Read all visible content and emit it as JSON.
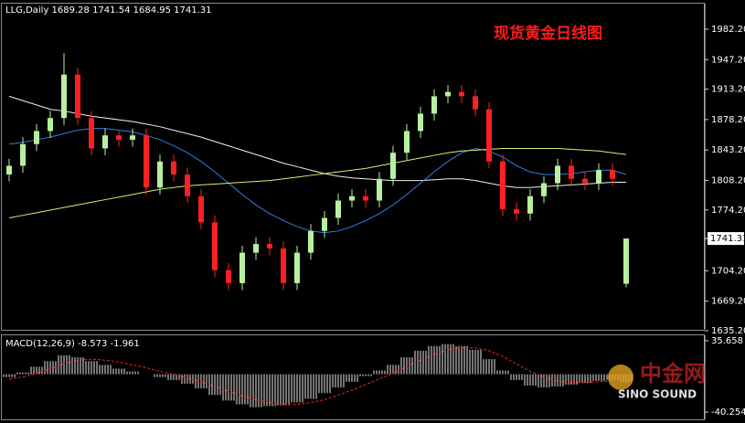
{
  "chart_data": [
    {
      "type": "candlestick",
      "title": "LLG,Daily  1689.28 1741.54 1684.95 1741.31",
      "annotation": "现货黄金日线图",
      "up_color": "#b8f0a0",
      "down_color": "#ff2020",
      "open": [
        1815,
        1825,
        1850,
        1865,
        1880,
        1930,
        1880,
        1845,
        1860,
        1855,
        1860,
        1800,
        1830,
        1815,
        1790,
        1760,
        1705,
        1690,
        1725,
        1735,
        1730,
        1690,
        1725,
        1750,
        1765,
        1785,
        1790,
        1785,
        1810,
        1840,
        1865,
        1885,
        1905,
        1910,
        1905,
        1890,
        1830,
        1775,
        1770,
        1790,
        1805,
        1825,
        1810,
        1805,
        1820,
        1689.28
      ],
      "high": [
        1833,
        1858,
        1873,
        1888,
        1955,
        1938,
        1888,
        1868,
        1865,
        1868,
        1868,
        1838,
        1838,
        1823,
        1798,
        1768,
        1713,
        1733,
        1743,
        1743,
        1738,
        1733,
        1758,
        1773,
        1793,
        1798,
        1798,
        1818,
        1848,
        1873,
        1893,
        1913,
        1918,
        1918,
        1913,
        1898,
        1838,
        1783,
        1798,
        1813,
        1833,
        1833,
        1818,
        1828,
        1828,
        1741.54
      ],
      "low": [
        1807,
        1817,
        1842,
        1857,
        1872,
        1872,
        1837,
        1837,
        1847,
        1847,
        1792,
        1792,
        1807,
        1782,
        1752,
        1697,
        1682,
        1682,
        1717,
        1722,
        1682,
        1682,
        1717,
        1742,
        1757,
        1777,
        1777,
        1777,
        1802,
        1832,
        1857,
        1877,
        1897,
        1897,
        1882,
        1822,
        1767,
        1762,
        1762,
        1782,
        1797,
        1802,
        1797,
        1797,
        1802,
        1684.95
      ],
      "close": [
        1825,
        1850,
        1865,
        1880,
        1930,
        1880,
        1845,
        1860,
        1855,
        1860,
        1800,
        1830,
        1815,
        1790,
        1760,
        1705,
        1690,
        1725,
        1735,
        1730,
        1690,
        1725,
        1750,
        1765,
        1785,
        1790,
        1785,
        1810,
        1840,
        1865,
        1885,
        1905,
        1910,
        1905,
        1890,
        1830,
        1775,
        1770,
        1790,
        1805,
        1825,
        1810,
        1805,
        1820,
        1810,
        1741.31
      ],
      "series": [
        {
          "color": "#f0f0f0",
          "values": [
            1905,
            1900,
            1895,
            1890,
            1888,
            1885,
            1882,
            1880,
            1878,
            1876,
            1873,
            1870,
            1866,
            1862,
            1858,
            1853,
            1848,
            1843,
            1838,
            1833,
            1828,
            1824,
            1820,
            1816,
            1813,
            1811,
            1810,
            1809,
            1808,
            1808,
            1808,
            1809,
            1810,
            1810,
            1808,
            1805,
            1802,
            1800,
            1800,
            1801,
            1802,
            1803,
            1804,
            1805,
            1806,
            1806
          ]
        },
        {
          "color": "#2f7fe0",
          "values": [
            1850,
            1852,
            1855,
            1858,
            1862,
            1866,
            1868,
            1868,
            1866,
            1864,
            1860,
            1855,
            1848,
            1840,
            1830,
            1818,
            1805,
            1792,
            1780,
            1770,
            1762,
            1755,
            1750,
            1748,
            1750,
            1755,
            1762,
            1770,
            1780,
            1792,
            1805,
            1818,
            1830,
            1840,
            1845,
            1842,
            1835,
            1825,
            1818,
            1815,
            1815,
            1816,
            1818,
            1820,
            1820,
            1815
          ]
        },
        {
          "color": "#d8f070",
          "values": [
            1765,
            1768,
            1771,
            1774,
            1777,
            1780,
            1783,
            1786,
            1789,
            1792,
            1795,
            1798,
            1800,
            1802,
            1803,
            1804,
            1805,
            1806,
            1807,
            1808,
            1810,
            1812,
            1814,
            1816,
            1818,
            1820,
            1822,
            1825,
            1828,
            1831,
            1834,
            1837,
            1840,
            1842,
            1843,
            1844,
            1845,
            1845,
            1845,
            1845,
            1845,
            1844,
            1843,
            1842,
            1840,
            1838
          ]
        }
      ],
      "ylim": [
        1637.3,
        2011.6
      ],
      "yticks": [
        {
          "value": 1982.2,
          "label": "1982.20"
        },
        {
          "value": 1947.2,
          "label": "1947.20"
        },
        {
          "value": 1913.2,
          "label": "1913.20"
        },
        {
          "value": 1878.2,
          "label": "1878.20"
        },
        {
          "value": 1843.2,
          "label": "1843.20"
        },
        {
          "value": 1808.2,
          "label": "1808.20"
        },
        {
          "value": 1774.2,
          "label": "1774.20"
        },
        {
          "value": 1704.2,
          "label": "1704.20"
        },
        {
          "value": 1669.2,
          "label": "1669.20"
        },
        {
          "value": 1635.2,
          "label": "1635.20"
        }
      ],
      "price_marker": {
        "value": 1741.31,
        "label": "1741.31"
      }
    },
    {
      "type": "macd",
      "title": "MACD(12,26,9) -8.573 -1.961",
      "hist_color": "#e8e8e8",
      "signal_color": "#ff2020",
      "values": [
        -3,
        2,
        8,
        14,
        20,
        18,
        14,
        10,
        6,
        3,
        0,
        -3,
        -6,
        -10,
        -15,
        -22,
        -28,
        -32,
        -35,
        -34,
        -33,
        -30,
        -26,
        -20,
        -14,
        -8,
        -2,
        4,
        10,
        18,
        25,
        30,
        32,
        30,
        26,
        16,
        4,
        -6,
        -12,
        -14,
        -13,
        -11,
        -9,
        -7,
        -6,
        -8.573
      ],
      "signal": [
        -5,
        -3,
        1,
        6,
        11,
        15,
        16,
        15,
        13,
        10,
        7,
        3,
        0,
        -4,
        -8,
        -13,
        -18,
        -23,
        -27,
        -30,
        -32,
        -32,
        -30,
        -27,
        -22,
        -17,
        -11,
        -5,
        1,
        8,
        15,
        21,
        26,
        28,
        28,
        25,
        19,
        11,
        3,
        -3,
        -7,
        -9,
        -9,
        -8,
        -7,
        -1.961
      ],
      "ylim": [
        -47.9,
        41.4
      ],
      "yticks": [
        35.658,
        -40.254
      ]
    }
  ],
  "watermark": {
    "logo": "中金网",
    "brand": "SINO SOUND"
  }
}
